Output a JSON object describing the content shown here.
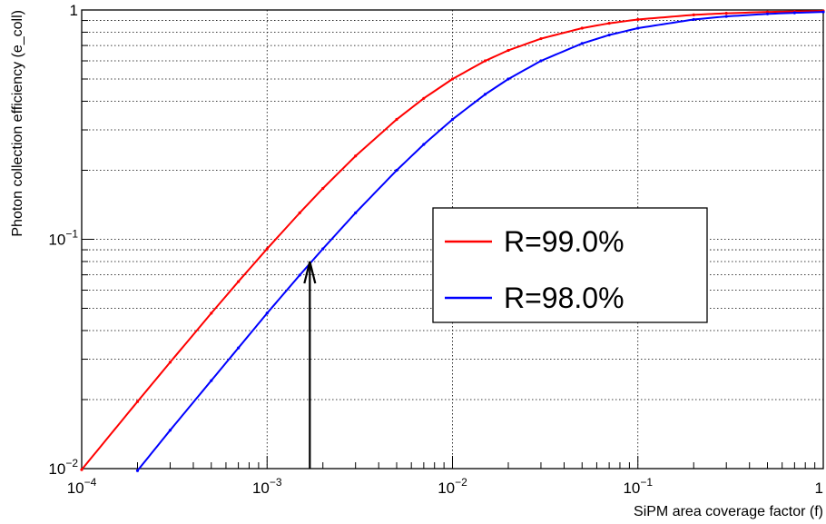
{
  "chart_data": {
    "type": "line",
    "x_scale": "log",
    "y_scale": "log",
    "xlim": [
      0.0001,
      1
    ],
    "ylim": [
      0.01,
      1
    ],
    "xlabel": "SiPM area coverage factor (f)",
    "ylabel": "Photon collection efficiency (e_coll)",
    "x_tick_labels": [
      {
        "value": 0.0001,
        "base": "10",
        "exp": "−4"
      },
      {
        "value": 0.001,
        "base": "10",
        "exp": "−3"
      },
      {
        "value": 0.01,
        "base": "10",
        "exp": "−2"
      },
      {
        "value": 0.1,
        "base": "10",
        "exp": "−1"
      },
      {
        "value": 1,
        "base": "1",
        "exp": ""
      }
    ],
    "y_tick_labels": [
      {
        "value": 0.01,
        "base": "10",
        "exp": "−2"
      },
      {
        "value": 0.1,
        "base": "10",
        "exp": "−1"
      },
      {
        "value": 1,
        "base": "1",
        "exp": ""
      }
    ],
    "grid": true,
    "legend_position": "center-right",
    "series": [
      {
        "name": "R=99.0%",
        "color": "#ff0000",
        "x": [
          0.0001,
          0.0002,
          0.0003,
          0.0005,
          0.0007,
          0.001,
          0.0015,
          0.002,
          0.003,
          0.005,
          0.007,
          0.01,
          0.015,
          0.02,
          0.03,
          0.05,
          0.07,
          0.1,
          0.2,
          0.3,
          0.5,
          0.7,
          1
        ],
        "y": [
          0.0099,
          0.0196,
          0.0291,
          0.0476,
          0.0654,
          0.0909,
          0.1304,
          0.1667,
          0.2308,
          0.3333,
          0.4118,
          0.5,
          0.6,
          0.6667,
          0.75,
          0.8333,
          0.875,
          0.9091,
          0.9524,
          0.9677,
          0.9804,
          0.9859,
          0.9901
        ]
      },
      {
        "name": "R=98.0%",
        "color": "#0000ff",
        "x": [
          0.0002,
          0.0003,
          0.0005,
          0.0007,
          0.001,
          0.0015,
          0.002,
          0.003,
          0.005,
          0.007,
          0.01,
          0.015,
          0.02,
          0.03,
          0.05,
          0.07,
          0.1,
          0.2,
          0.3,
          0.5,
          0.7,
          1
        ],
        "y": [
          0.0098,
          0.0147,
          0.0242,
          0.0336,
          0.0476,
          0.0698,
          0.0909,
          0.1304,
          0.2,
          0.2593,
          0.3333,
          0.4286,
          0.5,
          0.6,
          0.7143,
          0.7778,
          0.8333,
          0.9091,
          0.9375,
          0.9615,
          0.9722,
          0.9804
        ]
      }
    ],
    "annotations": [
      {
        "type": "arrow",
        "x": 0.0017,
        "y_from": 0.01,
        "y_to": 0.08,
        "color": "#000000"
      }
    ]
  }
}
